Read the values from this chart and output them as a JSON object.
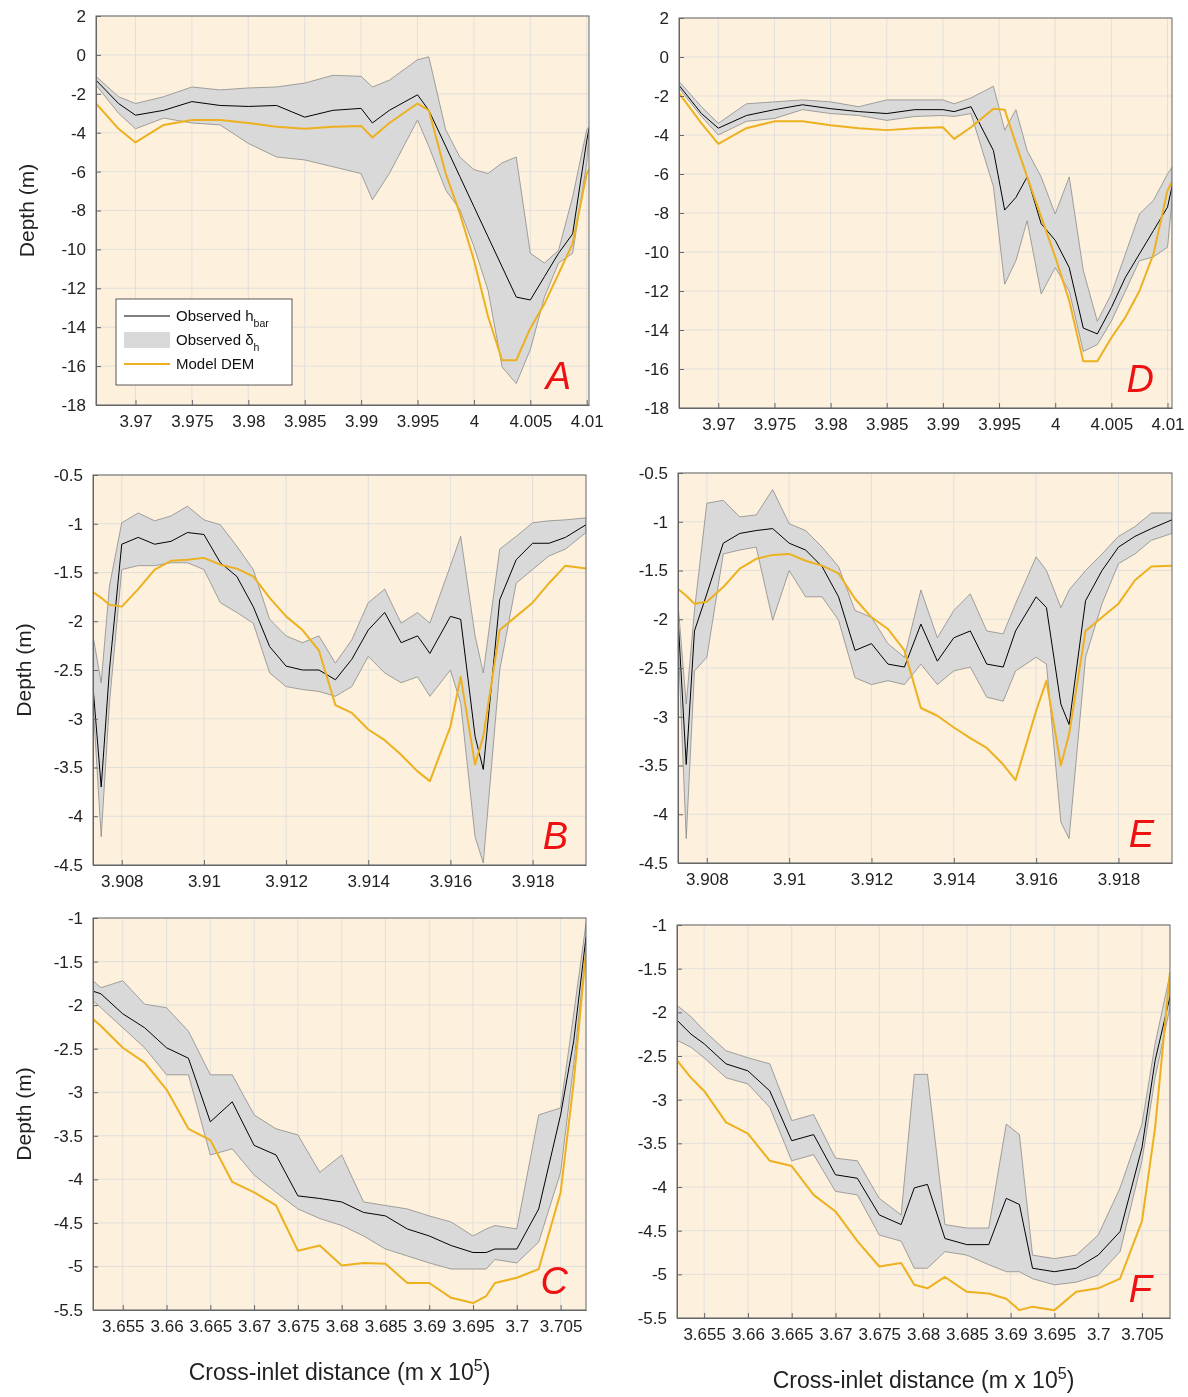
{
  "chart_data": [
    {
      "type": "line",
      "ylabel": "Depth (m)",
      "xlim": [
        3.9665,
        4.0102
      ],
      "ylim": [
        -18,
        2
      ],
      "xticks": [
        3.97,
        3.975,
        3.98,
        3.985,
        3.99,
        3.995,
        4,
        4.005,
        4.01
      ],
      "yticks": [
        -18,
        -16,
        -14,
        -12,
        -10,
        -8,
        -6,
        -4,
        -2,
        0,
        2
      ],
      "grid": true,
      "legend": "bottom left",
      "annotations": [
        "A",
        "Observed δ$_{h}$"
      ],
      "x": [
        3.9665,
        3.9685,
        3.97,
        3.9725,
        3.975,
        3.9775,
        3.98,
        3.9825,
        3.985,
        3.9875,
        3.99,
        3.991,
        3.9925,
        3.995,
        3.996,
        3.9975,
        3.99875,
        4,
        4.00125,
        4.0025,
        4.00375,
        4.005,
        4.00625,
        4.0075,
        4.00875,
        4.01,
        4.0102
      ],
      "series": [
        {
          "name": "Observed h$_{bar}$",
          "type": "line",
          "color": "#000000",
          "values": [
            -1.3,
            -2.5,
            -3.1,
            -2.85,
            -2.4,
            -2.6,
            -2.65,
            -2.6,
            -3.2,
            -2.85,
            -2.75,
            -3.5,
            -2.85,
            -2.05,
            -2.85,
            -4.7,
            -6.25,
            -7.8,
            -9.35,
            -10.9,
            -12.45,
            -12.6,
            -11.4,
            -10.2,
            -9.2,
            -4.4,
            -3.8
          ],
          "upper": [
            -1.1,
            -2.15,
            -2.5,
            -2.15,
            -1.65,
            -1.8,
            -1.7,
            -1.65,
            -1.45,
            -1.05,
            -1.1,
            -1.65,
            -1.3,
            -0.25,
            -0.1,
            -3.85,
            -5.25,
            -5.9,
            -6.1,
            -5.55,
            -5.25,
            -10.2,
            -10.7,
            -10.05,
            -7.3,
            -3.85,
            -3.7
          ],
          "lower": [
            -1.55,
            -3.0,
            -3.8,
            -3.25,
            -3.5,
            -3.6,
            -4.55,
            -5.25,
            -5.4,
            -5.75,
            -6.1,
            -7.45,
            -6.1,
            -3.35,
            -4.7,
            -6.95,
            -7.95,
            -9.85,
            -12.1,
            -16.05,
            -16.9,
            -15.15,
            -12.45,
            -10.7,
            -10.2,
            -5.55,
            -4.05
          ]
        },
        {
          "name": "Model DEM",
          "type": "line",
          "color": "#edb120",
          "values": [
            -2.5,
            -3.8,
            -4.5,
            -3.6,
            -3.35,
            -3.35,
            -3.5,
            -3.7,
            -3.8,
            -3.7,
            -3.65,
            -4.25,
            -3.5,
            -2.5,
            -2.85,
            -6.1,
            -8.15,
            -10.55,
            -13.45,
            -15.7,
            -15.7,
            -14.05,
            -12.8,
            -11.25,
            -9.7,
            -6.1,
            -5.9
          ]
        }
      ]
    },
    {
      "type": "line",
      "xlim": [
        3.9665,
        4.0104
      ],
      "ylim": [
        -18,
        2
      ],
      "xticks": [
        3.97,
        3.975,
        3.98,
        3.985,
        3.99,
        3.995,
        4,
        4.005,
        4.01
      ],
      "yticks": [
        -18,
        -16,
        -14,
        -12,
        -10,
        -8,
        -6,
        -4,
        -2,
        0,
        2
      ],
      "grid": true,
      "annotations": [
        "D"
      ],
      "x": [
        3.9665,
        3.9685,
        3.97,
        3.9725,
        3.975,
        3.9775,
        3.98,
        3.9825,
        3.985,
        3.9875,
        3.99,
        3.991,
        3.9925,
        3.9945,
        3.9955,
        3.9965,
        3.9975,
        3.99875,
        4,
        4.00125,
        4.0025,
        4.00375,
        4.005,
        4.00625,
        4.0075,
        4.00875,
        4.01,
        4.0104
      ],
      "series": [
        {
          "type": "line",
          "color": "#000000",
          "upper": [
            -1.25,
            -2.55,
            -3.4,
            -2.4,
            -2.3,
            -2.2,
            -2.3,
            -2.55,
            -2.2,
            -2.2,
            -2.2,
            -2.4,
            -2.1,
            -1.5,
            -3.75,
            -2.7,
            -4.8,
            -6.15,
            -8.05,
            -6.15,
            -10.95,
            -13.55,
            -12.15,
            -10.1,
            -8.05,
            -7.35,
            -6.0,
            -5.65
          ],
          "lower": [
            -1.6,
            -3.05,
            -4.0,
            -3.3,
            -3.15,
            -2.7,
            -2.9,
            -3.0,
            -3.25,
            -3.05,
            -3.0,
            -3.05,
            -2.9,
            -6.65,
            -11.65,
            -10.45,
            -8.4,
            -12.15,
            -10.8,
            -12.0,
            -15.1,
            -14.75,
            -13.55,
            -12.0,
            -10.45,
            -10.25,
            -9.75,
            -7.35
          ],
          "values": [
            -1.45,
            -2.9,
            -3.65,
            -3.0,
            -2.7,
            -2.45,
            -2.65,
            -2.8,
            -2.9,
            -2.7,
            -2.7,
            -2.8,
            -2.55,
            -4.8,
            -7.85,
            -7.2,
            -6.15,
            -8.55,
            -9.4,
            -10.8,
            -13.9,
            -14.2,
            -12.85,
            -11.3,
            -10.1,
            -8.9,
            -7.7,
            -6.65
          ]
        },
        {
          "type": "line",
          "color": "#edb120",
          "values": [
            -1.85,
            -3.4,
            -4.45,
            -3.65,
            -3.3,
            -3.3,
            -3.5,
            -3.65,
            -3.75,
            -3.65,
            -3.6,
            -4.2,
            -3.6,
            -2.65,
            -2.7,
            -4.45,
            -6.15,
            -8.2,
            -10.25,
            -12.5,
            -15.6,
            -15.6,
            -14.4,
            -13.35,
            -12.0,
            -10.1,
            -6.85,
            -6.4
          ]
        }
      ]
    },
    {
      "type": "line",
      "ylabel": "Depth (m)",
      "xlim": [
        3.9073,
        3.9193
      ],
      "ylim": [
        -4.5,
        -0.5
      ],
      "xticks": [
        3.908,
        3.91,
        3.912,
        3.914,
        3.916,
        3.918
      ],
      "yticks": [
        -4.5,
        -4,
        -3.5,
        -3,
        -2.5,
        -2,
        -1.5,
        -1,
        -0.5
      ],
      "grid": true,
      "annotations": [
        "B"
      ],
      "x": [
        3.9073,
        3.9075,
        3.9077,
        3.908,
        3.9084,
        3.9088,
        3.9092,
        3.9096,
        3.91,
        3.9104,
        3.9108,
        3.9112,
        3.9116,
        3.912,
        3.9124,
        3.9128,
        3.9132,
        3.9136,
        3.914,
        3.9144,
        3.9148,
        3.9152,
        3.9155,
        3.916,
        3.91625,
        3.9166,
        3.9168,
        3.9172,
        3.9176,
        3.918,
        3.9184,
        3.9188,
        3.9193
      ],
      "series": [
        {
          "type": "line",
          "color": "#000000",
          "upper": [
            -2.15,
            -2.63,
            -1.64,
            -0.99,
            -0.89,
            -0.97,
            -0.92,
            -0.82,
            -0.96,
            -1.01,
            -1.23,
            -1.47,
            -1.98,
            -2.15,
            -2.22,
            -2.15,
            -2.43,
            -2.19,
            -1.81,
            -1.67,
            -2.02,
            -1.91,
            -2.02,
            -1.43,
            -1.13,
            -2.15,
            -2.53,
            -1.26,
            -1.13,
            -0.99,
            -0.97,
            -0.96,
            -0.94
          ],
          "lower": [
            -2.84,
            -4.21,
            -2.84,
            -1.47,
            -1.43,
            -1.43,
            -1.4,
            -1.4,
            -1.47,
            -1.81,
            -1.91,
            -2.02,
            -2.53,
            -2.67,
            -2.7,
            -2.72,
            -2.77,
            -2.67,
            -2.36,
            -2.53,
            -2.63,
            -2.57,
            -2.77,
            -2.5,
            -2.84,
            -4.21,
            -4.48,
            -2.5,
            -1.61,
            -1.47,
            -1.33,
            -1.26,
            -1.09
          ],
          "values": [
            -2.67,
            -3.7,
            -2.5,
            -1.21,
            -1.14,
            -1.21,
            -1.18,
            -1.09,
            -1.11,
            -1.4,
            -1.54,
            -1.85,
            -2.26,
            -2.46,
            -2.5,
            -2.5,
            -2.6,
            -2.39,
            -2.09,
            -1.91,
            -2.22,
            -2.15,
            -2.33,
            -1.95,
            -1.98,
            -3.18,
            -3.52,
            -1.78,
            -1.37,
            -1.2,
            -1.2,
            -1.14,
            -1.01
          ]
        },
        {
          "type": "line",
          "color": "#edb120",
          "values": [
            -1.7,
            -1.76,
            -1.83,
            -1.85,
            -1.67,
            -1.47,
            -1.38,
            -1.37,
            -1.35,
            -1.42,
            -1.46,
            -1.54,
            -1.76,
            -1.95,
            -2.09,
            -2.3,
            -2.86,
            -2.94,
            -3.11,
            -3.22,
            -3.37,
            -3.54,
            -3.64,
            -3.08,
            -2.57,
            -3.47,
            -3.18,
            -2.09,
            -1.95,
            -1.81,
            -1.61,
            -1.43,
            -1.46
          ]
        }
      ]
    },
    {
      "type": "line",
      "xlim": [
        3.9073,
        3.9193
      ],
      "ylim": [
        -4.5,
        -0.5
      ],
      "xticks": [
        3.908,
        3.91,
        3.912,
        3.914,
        3.916,
        3.918
      ],
      "yticks": [
        -4.5,
        -4,
        -3.5,
        -3,
        -2.5,
        -2,
        -1.5,
        -1,
        -0.5
      ],
      "grid": true,
      "annotations": [
        "E"
      ],
      "x": [
        3.9073,
        3.9075,
        3.9077,
        3.908,
        3.9084,
        3.9088,
        3.9092,
        3.9096,
        3.91,
        3.9104,
        3.9108,
        3.9112,
        3.9116,
        3.912,
        3.9124,
        3.9128,
        3.9132,
        3.9136,
        3.914,
        3.9144,
        3.9148,
        3.9152,
        3.9155,
        3.916,
        3.91625,
        3.9166,
        3.9168,
        3.9172,
        3.9176,
        3.918,
        3.9184,
        3.9188,
        3.9193
      ],
      "series": [
        {
          "type": "line",
          "color": "#000000",
          "upper": [
            -1.84,
            -2.87,
            -1.91,
            -0.81,
            -0.78,
            -0.95,
            -0.93,
            -0.67,
            -1.02,
            -1.09,
            -1.26,
            -1.46,
            -1.91,
            -1.98,
            -2.25,
            -2.39,
            -1.7,
            -2.19,
            -1.91,
            -1.74,
            -2.12,
            -2.15,
            -1.84,
            -1.36,
            -1.5,
            -1.88,
            -1.7,
            -1.5,
            -1.33,
            -1.15,
            -1.05,
            -0.91,
            -0.91
          ],
          "lower": [
            -2.19,
            -4.25,
            -2.53,
            -2.39,
            -1.33,
            -1.29,
            -1.26,
            -2.01,
            -1.5,
            -1.77,
            -1.77,
            -2.01,
            -2.6,
            -2.67,
            -2.63,
            -2.67,
            -2.46,
            -2.67,
            -2.53,
            -2.49,
            -2.8,
            -2.84,
            -2.53,
            -2.39,
            -2.46,
            -4.08,
            -4.25,
            -2.39,
            -1.84,
            -1.43,
            -1.33,
            -1.19,
            -1.12
          ],
          "values": [
            -1.98,
            -3.49,
            -2.12,
            -1.74,
            -1.22,
            -1.12,
            -1.09,
            -1.07,
            -1.22,
            -1.29,
            -1.46,
            -1.77,
            -2.32,
            -2.25,
            -2.46,
            -2.49,
            -2.05,
            -2.43,
            -2.19,
            -2.12,
            -2.46,
            -2.49,
            -2.12,
            -1.77,
            -1.88,
            -2.87,
            -3.08,
            -1.81,
            -1.5,
            -1.26,
            -1.15,
            -1.07,
            -0.98
          ]
        },
        {
          "type": "line",
          "color": "#edb120",
          "values": [
            -1.69,
            -1.76,
            -1.84,
            -1.82,
            -1.67,
            -1.48,
            -1.38,
            -1.34,
            -1.33,
            -1.4,
            -1.45,
            -1.53,
            -1.79,
            -1.98,
            -2.1,
            -2.32,
            -2.91,
            -2.99,
            -3.11,
            -3.22,
            -3.32,
            -3.49,
            -3.65,
            -2.94,
            -2.63,
            -3.5,
            -3.18,
            -2.12,
            -1.98,
            -1.84,
            -1.6,
            -1.46,
            -1.45
          ]
        }
      ]
    },
    {
      "type": "line",
      "ylabel": "Depth (m)",
      "xlabel": "Cross-inlet  distance (m x 10$^{5}$)",
      "xlim": [
        3.6516,
        3.7079
      ],
      "ylim": [
        -5.5,
        -1
      ],
      "xticks": [
        3.655,
        3.66,
        3.665,
        3.67,
        3.675,
        3.68,
        3.685,
        3.69,
        3.695,
        3.7,
        3.705
      ],
      "yticks": [
        -5.5,
        -5,
        -4.5,
        -4,
        -3.5,
        -3,
        -2.5,
        -2,
        -1.5,
        -1
      ],
      "grid": true,
      "annotations": [
        "C"
      ],
      "x": [
        3.6516,
        3.6525,
        3.655,
        3.6575,
        3.66,
        3.6625,
        3.665,
        3.6675,
        3.67,
        3.6725,
        3.675,
        3.6775,
        3.68,
        3.6825,
        3.685,
        3.6875,
        3.69,
        3.6925,
        3.695,
        3.6965,
        3.6975,
        3.7,
        3.7025,
        3.705,
        3.7065,
        3.7079
      ],
      "series": [
        {
          "type": "line",
          "color": "#000000",
          "upper": [
            -1.72,
            -1.8,
            -1.72,
            -1.99,
            -2.03,
            -2.3,
            -2.8,
            -2.8,
            -3.26,
            -3.42,
            -3.49,
            -3.92,
            -3.72,
            -4.26,
            -4.3,
            -4.34,
            -4.42,
            -4.49,
            -4.65,
            -4.57,
            -4.53,
            -4.57,
            -3.26,
            -3.18,
            -2.1,
            -1.06
          ],
          "lower": [
            -1.95,
            -2.03,
            -2.26,
            -2.49,
            -2.8,
            -2.8,
            -3.72,
            -3.65,
            -3.95,
            -4.15,
            -4.34,
            -4.45,
            -4.53,
            -4.65,
            -4.8,
            -4.88,
            -4.96,
            -5.03,
            -5.03,
            -5.03,
            -4.92,
            -4.96,
            -4.72,
            -3.92,
            -2.68,
            -1.37
          ],
          "values": [
            -1.84,
            -1.87,
            -2.1,
            -2.26,
            -2.49,
            -2.61,
            -3.34,
            -3.11,
            -3.61,
            -3.72,
            -4.19,
            -4.22,
            -4.26,
            -4.38,
            -4.42,
            -4.57,
            -4.65,
            -4.76,
            -4.84,
            -4.84,
            -4.8,
            -4.8,
            -4.34,
            -3.26,
            -2.41,
            -1.22
          ]
        },
        {
          "type": "line",
          "color": "#edb120",
          "values": [
            -2.16,
            -2.24,
            -2.49,
            -2.66,
            -2.97,
            -3.42,
            -3.55,
            -4.03,
            -4.15,
            -4.3,
            -4.82,
            -4.76,
            -4.99,
            -4.96,
            -4.97,
            -5.19,
            -5.19,
            -5.36,
            -5.42,
            -5.34,
            -5.19,
            -5.13,
            -5.03,
            -4.15,
            -2.88,
            -1.39
          ]
        }
      ]
    },
    {
      "type": "line",
      "xlabel": "Cross-inlet  distance (m x 10$^{5}$)",
      "xlim": [
        3.6519,
        3.7082
      ],
      "ylim": [
        -5.5,
        -1
      ],
      "xticks": [
        3.655,
        3.66,
        3.665,
        3.67,
        3.675,
        3.68,
        3.685,
        3.69,
        3.695,
        3.7,
        3.705
      ],
      "yticks": [
        -5.5,
        -5,
        -4.5,
        -4,
        -3.5,
        -3,
        -2.5,
        -2,
        -1.5,
        -1
      ],
      "grid": true,
      "annotations": [
        "F"
      ],
      "x": [
        3.6519,
        3.6535,
        3.655,
        3.6575,
        3.66,
        3.6625,
        3.665,
        3.6675,
        3.67,
        3.6725,
        3.675,
        3.6775,
        3.679,
        3.6805,
        3.6825,
        3.685,
        3.6875,
        3.6895,
        3.691,
        3.6925,
        3.695,
        3.6975,
        3.7,
        3.7025,
        3.705,
        3.7065,
        3.7082
      ],
      "series": [
        {
          "type": "line",
          "color": "#000000",
          "upper": [
            -1.92,
            -2.05,
            -2.21,
            -2.44,
            -2.52,
            -2.59,
            -3.24,
            -3.17,
            -3.67,
            -3.7,
            -4.13,
            -4.32,
            -2.71,
            -2.71,
            -4.43,
            -4.47,
            -4.47,
            -3.28,
            -3.4,
            -4.78,
            -4.82,
            -4.78,
            -4.55,
            -4.01,
            -3.28,
            -2.36,
            -1.56
          ],
          "lower": [
            -2.32,
            -2.4,
            -2.52,
            -2.75,
            -2.82,
            -3.09,
            -3.7,
            -3.63,
            -4.05,
            -4.09,
            -4.55,
            -4.62,
            -4.93,
            -4.93,
            -4.74,
            -4.78,
            -4.89,
            -4.97,
            -4.97,
            -5.05,
            -5.12,
            -5.09,
            -5.01,
            -4.74,
            -3.7,
            -2.75,
            -1.94
          ],
          "values": [
            -2.09,
            -2.25,
            -2.36,
            -2.59,
            -2.67,
            -2.9,
            -3.47,
            -3.4,
            -3.86,
            -3.9,
            -4.32,
            -4.43,
            -4.01,
            -3.97,
            -4.59,
            -4.66,
            -4.66,
            -4.13,
            -4.2,
            -4.93,
            -4.97,
            -4.93,
            -4.78,
            -4.51,
            -3.55,
            -2.55,
            -1.82
          ]
        },
        {
          "type": "line",
          "color": "#edb120",
          "values": [
            -2.55,
            -2.75,
            -2.9,
            -3.26,
            -3.39,
            -3.7,
            -3.76,
            -4.09,
            -4.28,
            -4.62,
            -4.91,
            -4.87,
            -5.12,
            -5.16,
            -5.03,
            -5.2,
            -5.22,
            -5.28,
            -5.41,
            -5.37,
            -5.41,
            -5.2,
            -5.16,
            -5.05,
            -4.39,
            -3.32,
            -1.54
          ]
        }
      ]
    }
  ]
}
